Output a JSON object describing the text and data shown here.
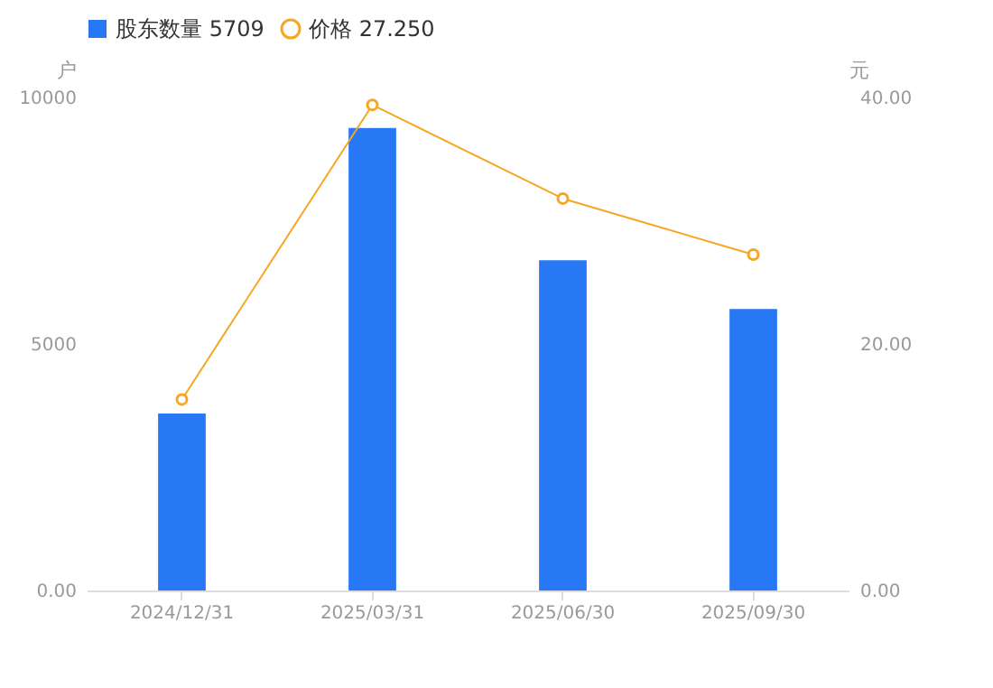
{
  "chart_data": {
    "type": "bar",
    "categories": [
      "2024/12/31",
      "2025/03/31",
      "2025/06/30",
      "2025/09/30"
    ],
    "series": [
      {
        "name": "股东数量 5709",
        "color": "#2878f5",
        "values": [
          3590,
          9380,
          6700,
          5709
        ]
      },
      {
        "name": "价格 27.250",
        "type": "line",
        "axis": "y2",
        "color": "#f5a623",
        "marker": "circle",
        "values": [
          15.5,
          39.4,
          31.8,
          27.25
        ]
      }
    ],
    "ylabel": "户",
    "y2label": "元",
    "ylim": [
      0,
      10000
    ],
    "yticks": [
      {
        "value": 0,
        "label": "0.00"
      },
      5000,
      10000
    ],
    "y2lim": [
      0,
      40
    ],
    "y2ticks": [
      {
        "value": 0,
        "label": "0.00"
      },
      {
        "value": 20,
        "label": "20.00"
      },
      {
        "value": 40,
        "label": "40.00"
      }
    ],
    "legend": "top left",
    "grid": false
  }
}
